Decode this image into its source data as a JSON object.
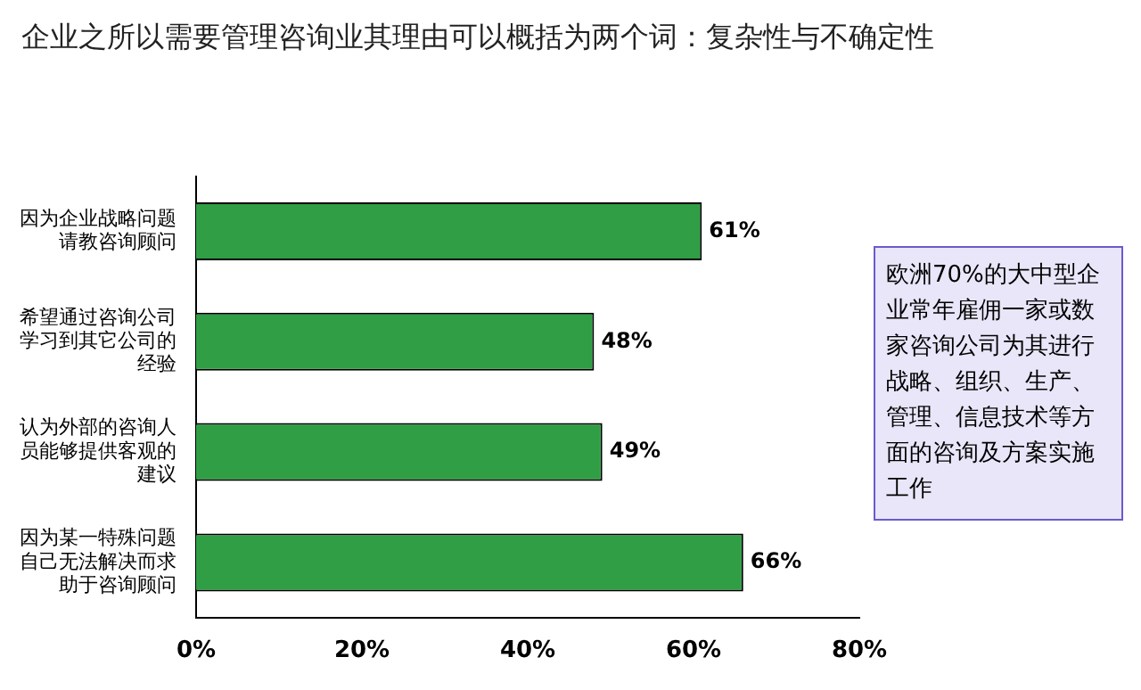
{
  "chart_data": {
    "type": "bar",
    "orientation": "horizontal",
    "title": "企业之所以需要管理咨询业其理由可以概括为两个词：复杂性与不确定性",
    "categories": [
      "因为企业战略问题请教咨询顾问",
      "希望通过咨询公司学习到其它公司的经验",
      "认为外部的咨询人员能够提供客观的建议",
      "因为某一特殊问题自己无法解决而求助于咨询顾问"
    ],
    "values": [
      61,
      48,
      49,
      66
    ],
    "value_labels": [
      "61%",
      "48%",
      "49%",
      "66%"
    ],
    "color": "#2f9e44",
    "xlim": [
      0,
      80
    ],
    "xticks": [
      {
        "value": 0,
        "label": "0%"
      },
      {
        "value": 20,
        "label": "20%"
      },
      {
        "value": 40,
        "label": "40%"
      },
      {
        "value": 60,
        "label": "60%"
      },
      {
        "value": 80,
        "label": "80%"
      }
    ],
    "grid": false,
    "legend": false,
    "annotations": [
      "欧洲70%的大中型企业常年雇佣一家或数家咨询公司为其进行战略、组织、生产、管理、信息技术等方面的咨询及方案实施工作"
    ]
  }
}
